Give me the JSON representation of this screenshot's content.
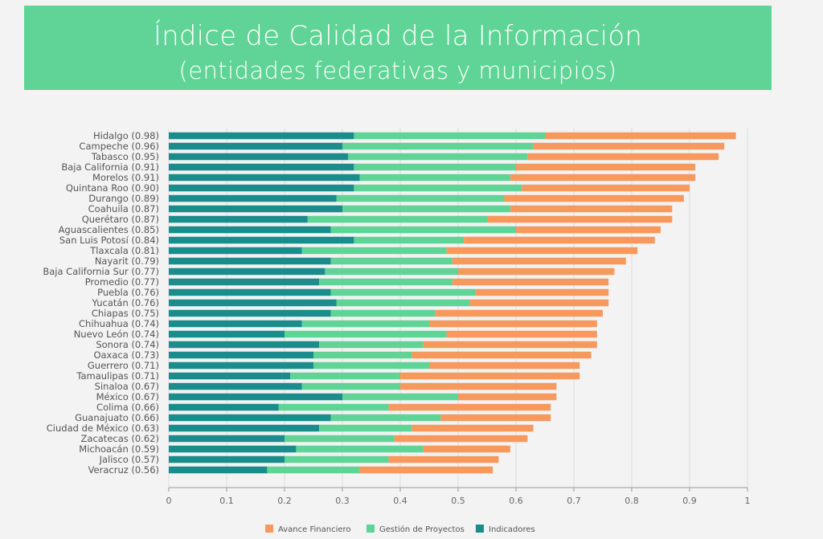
{
  "header": {
    "title": "Índice de Calidad de la Información",
    "subtitle": "(entidades federativas y municipios)"
  },
  "colors": {
    "banner_bg": "#5fd496",
    "indicadores": "#1a8c8c",
    "gestion": "#5fd496",
    "avance": "#f7995d"
  },
  "chart_data": {
    "type": "bar",
    "orientation": "horizontal",
    "stacked": true,
    "title": "Índice de Calidad de la Información",
    "subtitle": "(entidades federativas y municipios)",
    "xlim": [
      0,
      1
    ],
    "xticks": [
      "0",
      "0.1",
      "0.2",
      "0.3",
      "0.4",
      "0.5",
      "0.6",
      "0.7",
      "0.8",
      "0.9",
      "1"
    ],
    "grid": "vertical",
    "legend_position": "bottom",
    "categories": [
      "Hidalgo (0.98)",
      "Campeche (0.96)",
      "Tabasco (0.95)",
      "Baja California (0.91)",
      "Morelos (0.91)",
      "Quintana Roo (0.90)",
      "Durango (0.89)",
      "Coahuila (0.87)",
      "Querétaro (0.87)",
      "Aguascalientes (0.85)",
      "San Luis Potosí (0.84)",
      "Tlaxcala (0.81)",
      "Nayarit (0.79)",
      "Baja California Sur (0.77)",
      "Promedio (0.77)",
      "Puebla (0.76)",
      "Yucatán (0.76)",
      "Chiapas (0.75)",
      "Chihuahua (0.74)",
      "Nuevo León (0.74)",
      "Sonora (0.74)",
      "Oaxaca (0.73)",
      "Guerrero (0.71)",
      "Tamaulipas (0.71)",
      "Sinaloa (0.67)",
      "México (0.67)",
      "Colima (0.66)",
      "Guanajuato (0.66)",
      "Ciudad de México (0.63)",
      "Zacatecas (0.62)",
      "Michoacán (0.59)",
      "Jalisco (0.57)",
      "Veracruz (0.56)"
    ],
    "series": [
      {
        "name": "Indicadores",
        "color": "#1a8c8c",
        "values": [
          0.32,
          0.3,
          0.31,
          0.32,
          0.33,
          0.32,
          0.29,
          0.3,
          0.24,
          0.28,
          0.32,
          0.23,
          0.28,
          0.27,
          0.26,
          0.28,
          0.29,
          0.28,
          0.23,
          0.2,
          0.26,
          0.25,
          0.25,
          0.21,
          0.23,
          0.3,
          0.19,
          0.28,
          0.26,
          0.2,
          0.22,
          0.2,
          0.17
        ]
      },
      {
        "name": "Gestión de Proyectos",
        "color": "#5fd496",
        "values": [
          0.33,
          0.33,
          0.31,
          0.28,
          0.26,
          0.29,
          0.29,
          0.29,
          0.31,
          0.32,
          0.19,
          0.25,
          0.21,
          0.23,
          0.23,
          0.25,
          0.23,
          0.18,
          0.22,
          0.28,
          0.18,
          0.17,
          0.2,
          0.19,
          0.17,
          0.2,
          0.19,
          0.19,
          0.16,
          0.19,
          0.22,
          0.18,
          0.16
        ]
      },
      {
        "name": "Avance Financiero",
        "color": "#f7995d",
        "values": [
          0.33,
          0.33,
          0.33,
          0.31,
          0.32,
          0.29,
          0.31,
          0.28,
          0.32,
          0.25,
          0.33,
          0.33,
          0.3,
          0.27,
          0.27,
          0.23,
          0.24,
          0.29,
          0.29,
          0.26,
          0.3,
          0.31,
          0.26,
          0.31,
          0.27,
          0.17,
          0.28,
          0.19,
          0.21,
          0.23,
          0.15,
          0.19,
          0.23
        ]
      }
    ],
    "legend": [
      "Avance Financiero",
      "Gestión de Proyectos",
      "Indicadores"
    ]
  }
}
